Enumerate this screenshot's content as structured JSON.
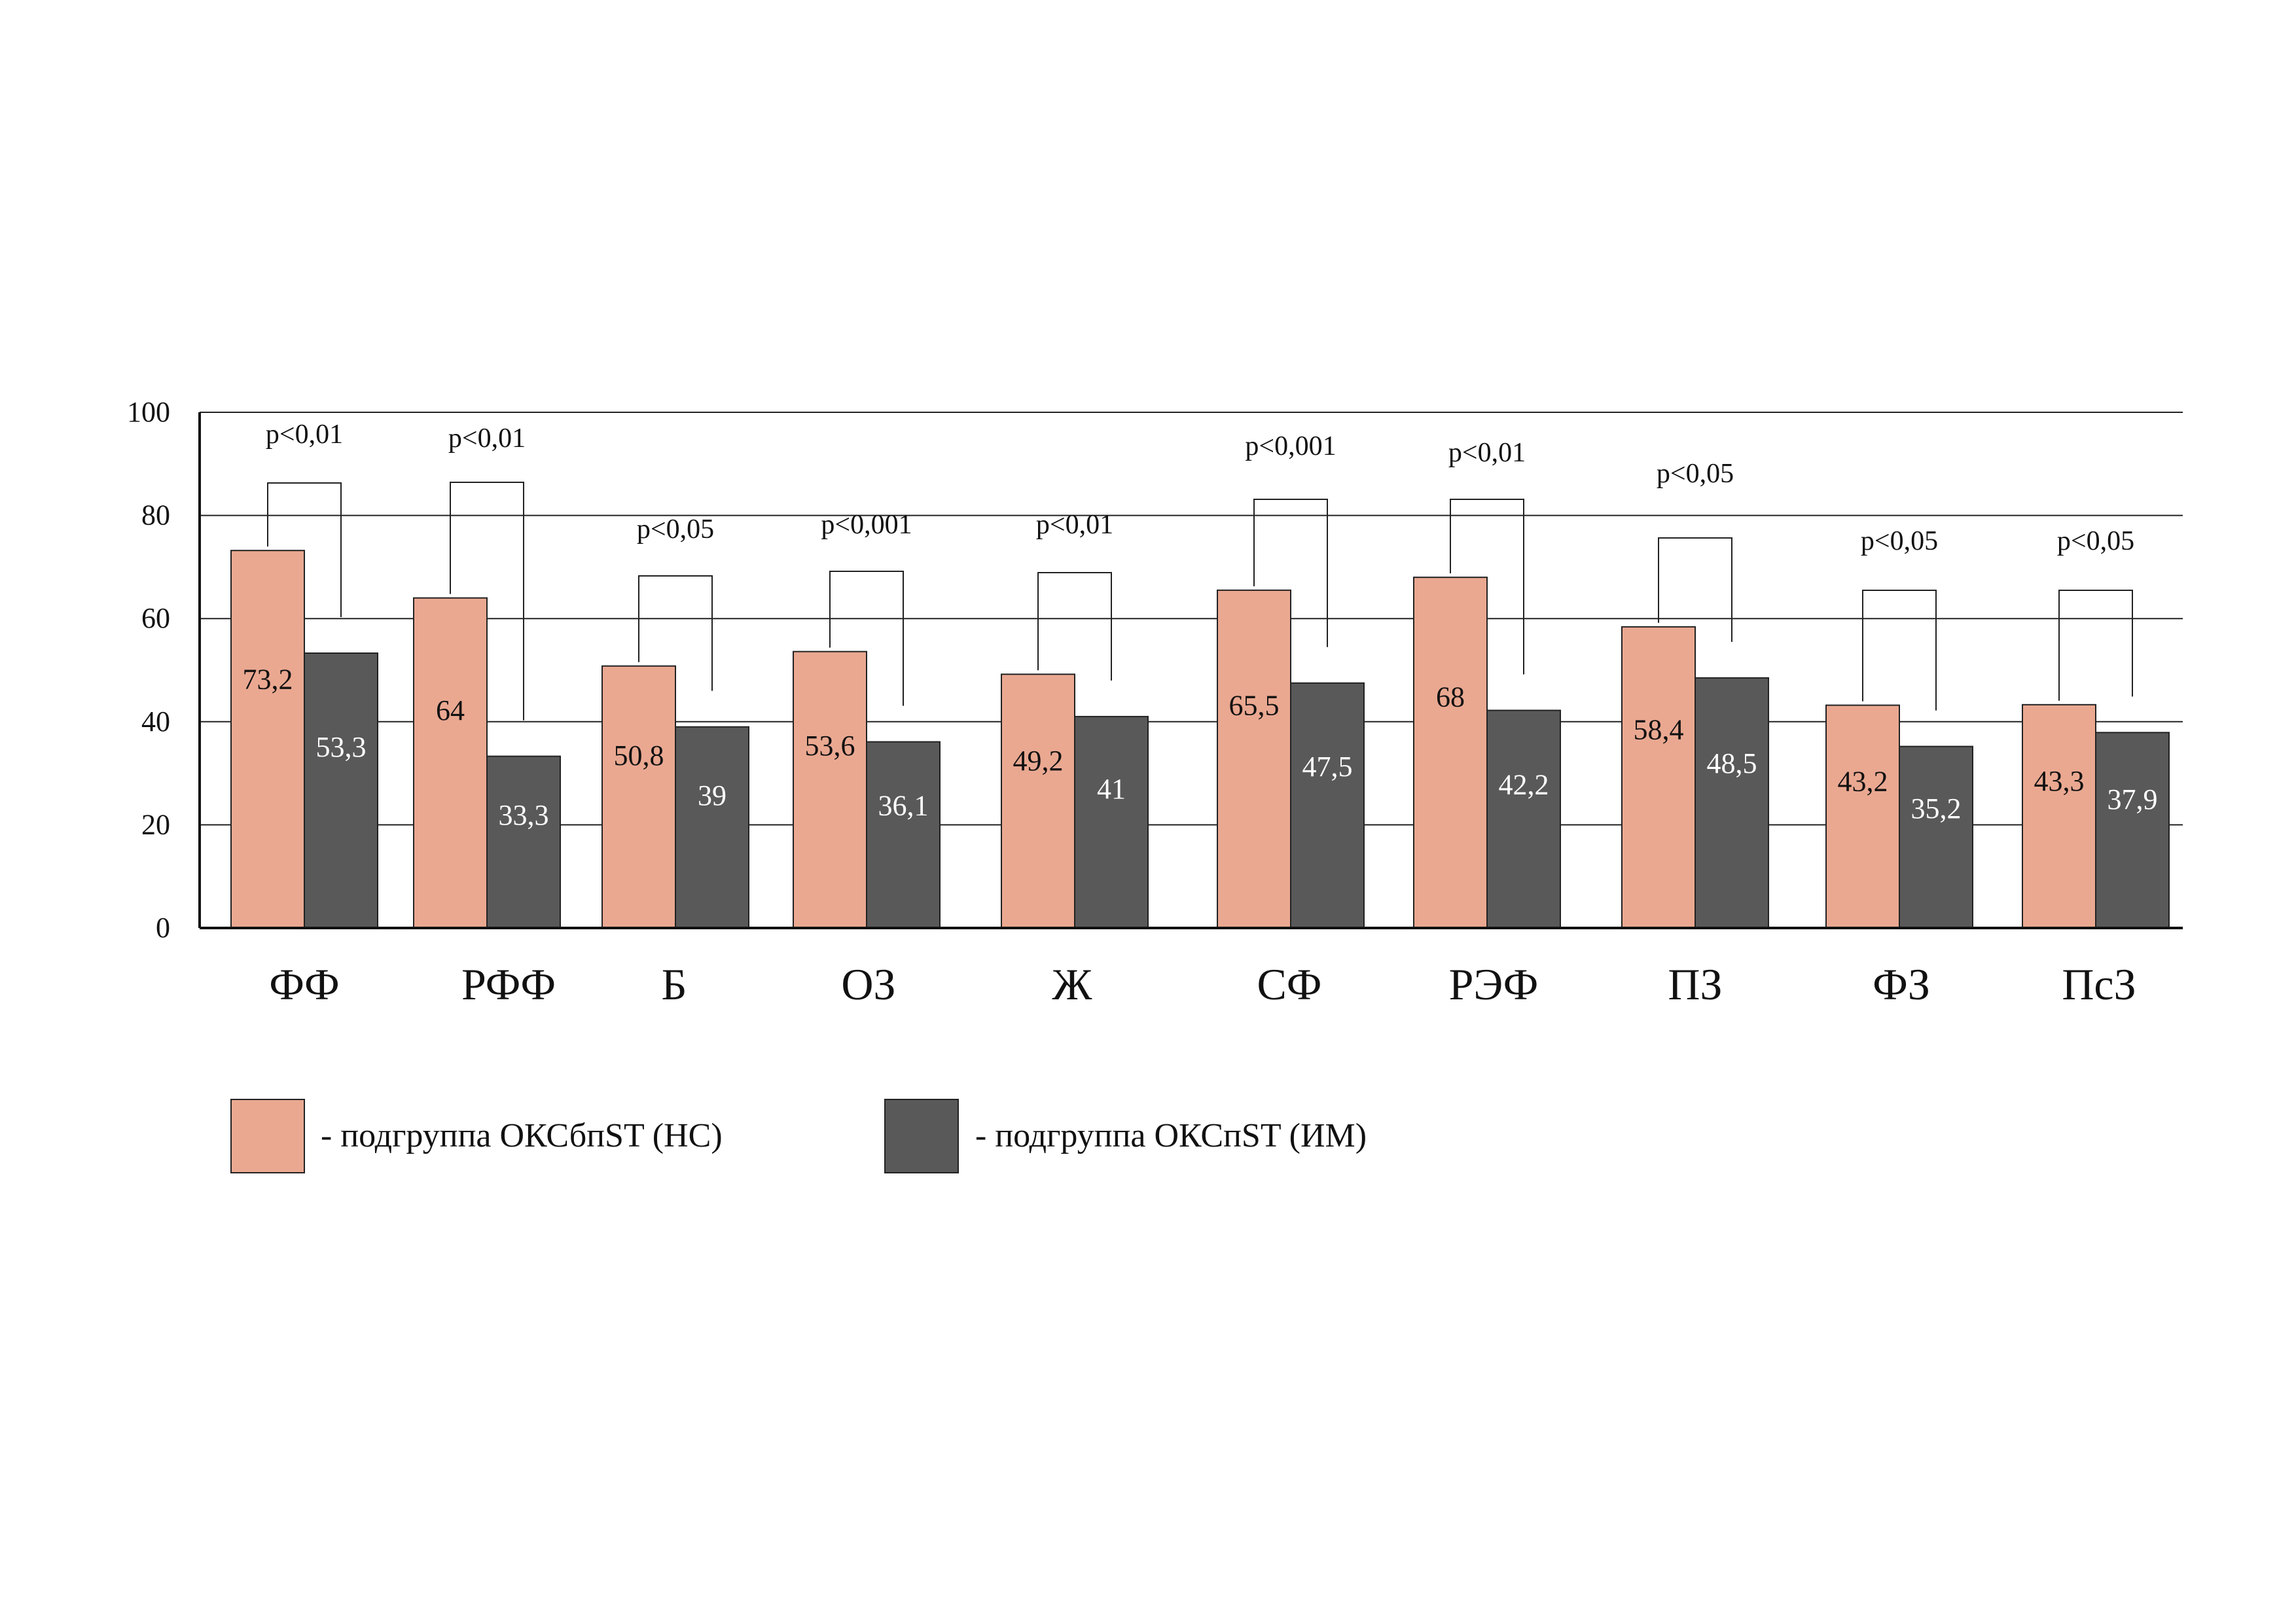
{
  "chart_data": {
    "type": "bar",
    "categories": [
      "ФФ",
      "РФФ",
      "Б",
      "ОЗ",
      "Ж",
      "СФ",
      "РЭФ",
      "ПЗ",
      "ФЗ",
      "ПсЗ"
    ],
    "series": [
      {
        "name": "- подгруппа ОКСбпST (НС)",
        "color": "#eaa891",
        "values": [
          73.2,
          64,
          50.8,
          53.6,
          49.2,
          65.5,
          68,
          58.4,
          43.2,
          43.3
        ],
        "labels": [
          "73,2",
          "64",
          "50,8",
          "53,6",
          "49,2",
          "65,5",
          "68",
          "58,4",
          "43,2",
          "43,3"
        ]
      },
      {
        "name": "- подгруппа ОКСпST (ИМ)",
        "color": "#595959",
        "values": [
          53.3,
          33.3,
          39,
          36.1,
          41,
          47.5,
          42.2,
          48.5,
          35.2,
          37.9
        ],
        "labels": [
          "53,3",
          "33,3",
          "39",
          "36,1",
          "41",
          "47,5",
          "42,2",
          "48,5",
          "35,2",
          "37,9"
        ]
      }
    ],
    "p_values": [
      "p<0,01",
      "p<0,01",
      "p<0,05",
      "p<0,001",
      "p<0,01",
      "p<0,001",
      "p<0,01",
      "p<0,05",
      "p<0,05",
      "p<0,05"
    ],
    "y_ticks": [
      "0",
      "20",
      "40",
      "60",
      "80",
      "100"
    ],
    "ylim": [
      0,
      100
    ],
    "grid": true,
    "legend_position": "bottom-left",
    "title": "",
    "xlabel": "",
    "ylabel": ""
  }
}
